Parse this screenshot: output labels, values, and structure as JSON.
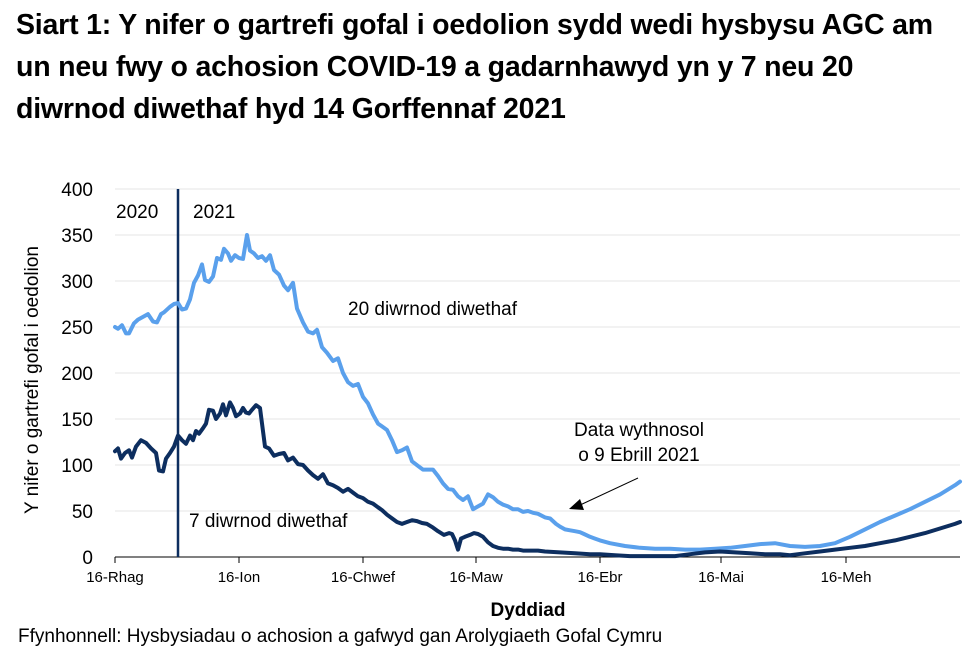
{
  "chart_data": {
    "type": "line",
    "title": "Siart 1: Y nifer o gartrefi gofal i oedolion sydd wedi hysbysu AGC am un neu fwy o achosion COVID-19 a gadarnhawyd yn y 7 neu 20 diwrnod diwethaf hyd 14 Gorffennaf 2021",
    "xlabel": "Dyddiad",
    "ylabel": "Y nifer o gartrefi gofal i oedolion",
    "ylim": [
      0,
      400
    ],
    "yticks": [
      0,
      50,
      100,
      150,
      200,
      250,
      300,
      350,
      400
    ],
    "xticks": [
      "16-Rhag",
      "16-Ion",
      "16-Chwef",
      "16-Maw",
      "16-Ebr",
      "16-Mai",
      "16-Meh"
    ],
    "grid": true,
    "year_divider": {
      "left_label": "2020",
      "right_label": "2021"
    },
    "annotations": [
      {
        "text": "20 diwrnod diwethaf"
      },
      {
        "text": "7 diwrnod diwethaf"
      },
      {
        "text_line1": "Data wythnosol",
        "text_line2": "o 9 Ebrill 2021"
      }
    ],
    "series": [
      {
        "name": "20 diwrnod diwethaf",
        "color": "#5aa0ec",
        "points": [
          [
            115,
            250
          ],
          [
            118,
            248
          ],
          [
            122,
            252
          ],
          [
            126,
            243
          ],
          [
            129,
            243
          ],
          [
            134,
            254
          ],
          [
            138,
            258
          ],
          [
            143,
            261
          ],
          [
            148,
            264
          ],
          [
            153,
            256
          ],
          [
            157,
            255
          ],
          [
            161,
            264
          ],
          [
            164,
            266
          ],
          [
            170,
            272
          ],
          [
            174,
            275
          ],
          [
            178,
            276
          ],
          [
            182,
            269
          ],
          [
            186,
            270
          ],
          [
            190,
            280
          ],
          [
            194,
            298
          ],
          [
            198,
            306
          ],
          [
            202,
            318
          ],
          [
            205,
            301
          ],
          [
            209,
            299
          ],
          [
            213,
            305
          ],
          [
            217,
            325
          ],
          [
            221,
            323
          ],
          [
            224,
            335
          ],
          [
            228,
            330
          ],
          [
            231,
            322
          ],
          [
            235,
            328
          ],
          [
            239,
            325
          ],
          [
            243,
            324
          ],
          [
            247,
            350
          ],
          [
            250,
            333
          ],
          [
            254,
            330
          ],
          [
            258,
            325
          ],
          [
            262,
            327
          ],
          [
            266,
            322
          ],
          [
            270,
            328
          ],
          [
            274,
            312
          ],
          [
            279,
            307
          ],
          [
            284,
            295
          ],
          [
            288,
            290
          ],
          [
            293,
            298
          ],
          [
            297,
            270
          ],
          [
            303,
            255
          ],
          [
            308,
            245
          ],
          [
            313,
            243
          ],
          [
            317,
            247
          ],
          [
            322,
            228
          ],
          [
            327,
            222
          ],
          [
            333,
            213
          ],
          [
            338,
            216
          ],
          [
            343,
            200
          ],
          [
            348,
            190
          ],
          [
            353,
            186
          ],
          [
            358,
            188
          ],
          [
            363,
            174
          ],
          [
            368,
            167
          ],
          [
            373,
            155
          ],
          [
            378,
            145
          ],
          [
            382,
            142
          ],
          [
            387,
            138
          ],
          [
            392,
            127
          ],
          [
            397,
            114
          ],
          [
            402,
            116
          ],
          [
            407,
            119
          ],
          [
            412,
            104
          ],
          [
            418,
            99
          ],
          [
            423,
            95
          ],
          [
            428,
            95
          ],
          [
            433,
            95
          ],
          [
            438,
            88
          ],
          [
            443,
            80
          ],
          [
            448,
            74
          ],
          [
            453,
            73
          ],
          [
            458,
            66
          ],
          [
            463,
            62
          ],
          [
            468,
            66
          ],
          [
            473,
            52
          ],
          [
            478,
            55
          ],
          [
            483,
            58
          ],
          [
            488,
            68
          ],
          [
            493,
            65
          ],
          [
            498,
            60
          ],
          [
            503,
            57
          ],
          [
            508,
            55
          ],
          [
            513,
            52
          ],
          [
            518,
            52
          ],
          [
            523,
            49
          ],
          [
            528,
            50
          ],
          [
            533,
            48
          ],
          [
            538,
            47
          ],
          [
            545,
            43
          ],
          [
            550,
            42
          ],
          [
            556,
            36
          ],
          [
            560,
            33
          ],
          [
            565,
            30
          ],
          [
            570,
            29
          ],
          [
            575,
            28
          ],
          [
            580,
            27
          ],
          [
            584,
            25
          ],
          [
            590,
            22
          ],
          [
            595,
            20
          ],
          [
            600,
            18
          ],
          [
            610,
            15
          ],
          [
            625,
            12
          ],
          [
            640,
            10
          ],
          [
            655,
            9
          ],
          [
            670,
            9
          ],
          [
            685,
            8
          ],
          [
            700,
            8
          ],
          [
            715,
            9
          ],
          [
            730,
            10
          ],
          [
            745,
            12
          ],
          [
            760,
            14
          ],
          [
            775,
            15
          ],
          [
            790,
            12
          ],
          [
            805,
            11
          ],
          [
            820,
            12
          ],
          [
            835,
            15
          ],
          [
            850,
            22
          ],
          [
            865,
            30
          ],
          [
            880,
            38
          ],
          [
            895,
            45
          ],
          [
            910,
            52
          ],
          [
            925,
            60
          ],
          [
            940,
            68
          ],
          [
            955,
            78
          ],
          [
            960,
            82
          ]
        ]
      },
      {
        "name": "7 diwrnod diwethaf",
        "color": "#0d2e5f",
        "points": [
          [
            115,
            115
          ],
          [
            118,
            118
          ],
          [
            121,
            107
          ],
          [
            125,
            113
          ],
          [
            129,
            116
          ],
          [
            132,
            108
          ],
          [
            136,
            120
          ],
          [
            141,
            127
          ],
          [
            146,
            124
          ],
          [
            151,
            118
          ],
          [
            156,
            113
          ],
          [
            159,
            94
          ],
          [
            163,
            93
          ],
          [
            166,
            107
          ],
          [
            170,
            113
          ],
          [
            174,
            120
          ],
          [
            178,
            132
          ],
          [
            182,
            127
          ],
          [
            186,
            123
          ],
          [
            190,
            132
          ],
          [
            193,
            127
          ],
          [
            196,
            137
          ],
          [
            199,
            134
          ],
          [
            203,
            140
          ],
          [
            206,
            145
          ],
          [
            209,
            160
          ],
          [
            213,
            159
          ],
          [
            216,
            150
          ],
          [
            220,
            156
          ],
          [
            223,
            166
          ],
          [
            226,
            154
          ],
          [
            230,
            168
          ],
          [
            233,
            162
          ],
          [
            236,
            153
          ],
          [
            240,
            156
          ],
          [
            243,
            162
          ],
          [
            246,
            157
          ],
          [
            249,
            156
          ],
          [
            252,
            160
          ],
          [
            256,
            165
          ],
          [
            260,
            162
          ],
          [
            265,
            120
          ],
          [
            269,
            118
          ],
          [
            274,
            110
          ],
          [
            279,
            112
          ],
          [
            284,
            113
          ],
          [
            288,
            105
          ],
          [
            293,
            108
          ],
          [
            298,
            101
          ],
          [
            303,
            100
          ],
          [
            308,
            94
          ],
          [
            313,
            89
          ],
          [
            318,
            85
          ],
          [
            323,
            90
          ],
          [
            328,
            80
          ],
          [
            333,
            78
          ],
          [
            338,
            75
          ],
          [
            343,
            71
          ],
          [
            348,
            74
          ],
          [
            353,
            70
          ],
          [
            358,
            66
          ],
          [
            363,
            64
          ],
          [
            368,
            60
          ],
          [
            373,
            58
          ],
          [
            378,
            54
          ],
          [
            382,
            51
          ],
          [
            387,
            46
          ],
          [
            392,
            42
          ],
          [
            397,
            38
          ],
          [
            402,
            36
          ],
          [
            407,
            38
          ],
          [
            412,
            40
          ],
          [
            417,
            39
          ],
          [
            422,
            37
          ],
          [
            427,
            36
          ],
          [
            433,
            32
          ],
          [
            438,
            28
          ],
          [
            444,
            24
          ],
          [
            449,
            26
          ],
          [
            452,
            25
          ],
          [
            455,
            18
          ],
          [
            458,
            8
          ],
          [
            461,
            20
          ],
          [
            465,
            22
          ],
          [
            470,
            24
          ],
          [
            474,
            26
          ],
          [
            478,
            25
          ],
          [
            483,
            22
          ],
          [
            488,
            16
          ],
          [
            493,
            12
          ],
          [
            498,
            10
          ],
          [
            503,
            9
          ],
          [
            508,
            9
          ],
          [
            513,
            8
          ],
          [
            518,
            8
          ],
          [
            523,
            7
          ],
          [
            528,
            7
          ],
          [
            533,
            7
          ],
          [
            538,
            7
          ],
          [
            545,
            6
          ],
          [
            560,
            5
          ],
          [
            575,
            4
          ],
          [
            590,
            3
          ],
          [
            600,
            3
          ],
          [
            615,
            2
          ],
          [
            630,
            1
          ],
          [
            645,
            1
          ],
          [
            660,
            1
          ],
          [
            675,
            1
          ],
          [
            690,
            3
          ],
          [
            705,
            5
          ],
          [
            720,
            6
          ],
          [
            735,
            5
          ],
          [
            750,
            4
          ],
          [
            765,
            3
          ],
          [
            780,
            3
          ],
          [
            790,
            2
          ],
          [
            805,
            4
          ],
          [
            820,
            6
          ],
          [
            835,
            8
          ],
          [
            850,
            10
          ],
          [
            865,
            12
          ],
          [
            880,
            15
          ],
          [
            895,
            18
          ],
          [
            910,
            22
          ],
          [
            925,
            26
          ],
          [
            940,
            31
          ],
          [
            955,
            36
          ],
          [
            960,
            38
          ]
        ]
      }
    ]
  },
  "header": {
    "title": "Siart 1: Y nifer o gartrefi gofal i oedolion sydd wedi hysbysu AGC am un neu fwy o achosion COVID-19 a gadarnhawyd yn y 7 neu 20 diwrnod diwethaf hyd 14 Gorffennaf 2021"
  },
  "axes": {
    "y_title": "Y nifer o gartrefi gofal i oedolion",
    "x_title": "Dyddiad",
    "y_ticks": [
      "0",
      "50",
      "100",
      "150",
      "200",
      "250",
      "300",
      "350",
      "400"
    ],
    "x_ticks": [
      "16-Rhag",
      "16-Ion",
      "16-Chwef",
      "16-Maw",
      "16-Ebr",
      "16-Mai",
      "16-Meh"
    ]
  },
  "labels": {
    "year_2020": "2020",
    "year_2021": "2021",
    "series_20": "20 diwrnod diwethaf",
    "series_7": "7 diwrnod diwethaf",
    "weekly_line1": "Data wythnosol",
    "weekly_line2": "o 9 Ebrill 2021"
  },
  "footer": {
    "source": "Ffynhonnell: Hysbysiadau o achosion a gafwyd gan Arolygiaeth Gofal Cymru"
  },
  "colors": {
    "series_20": "#5aa0ec",
    "series_7": "#0d2e5f",
    "divider": "#0d2e5f",
    "grid": "#e4e4e4"
  }
}
